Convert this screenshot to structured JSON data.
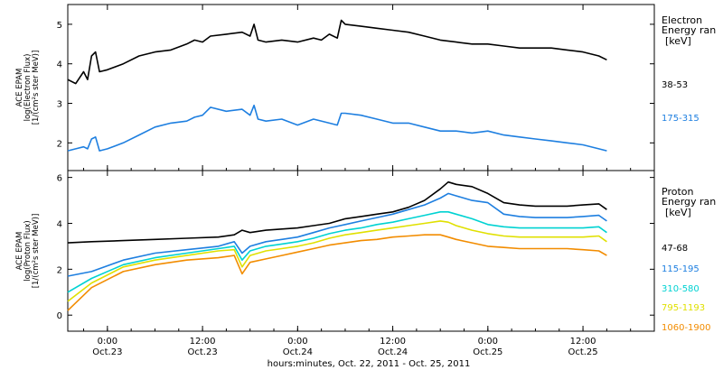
{
  "figure": {
    "xaxis_title": "hours:minutes, Oct. 22, 2011 - Oct. 25, 2011",
    "x_ticks": [
      {
        "x": 24,
        "time": "0:00",
        "day": "Oct.23"
      },
      {
        "x": 36,
        "time": "12:00",
        "day": "Oct.23"
      },
      {
        "x": 48,
        "time": "0:00",
        "day": "Oct.24"
      },
      {
        "x": 60,
        "time": "12:00",
        "day": "Oct.24"
      },
      {
        "x": 72,
        "time": "0:00",
        "day": "Oct.25"
      },
      {
        "x": 84,
        "time": "12:00",
        "day": "Oct.25"
      }
    ]
  },
  "chart_data": [
    {
      "type": "line",
      "panel": "electron",
      "ylabel_lines": [
        "ACE EPAM",
        "log(Electron Flux)",
        "[1/(cm²s ster MeV)]"
      ],
      "xlim": [
        19,
        93
      ],
      "ylim": [
        1.3,
        5.5
      ],
      "yticks": [
        2,
        3,
        4,
        5
      ],
      "legend_title": [
        "Electron",
        "Energy ran"
      ],
      "legend_unit": "[keV]",
      "series": [
        {
          "name": "38-53",
          "color": "#000000",
          "x": [
            19,
            20,
            21,
            21.5,
            22,
            22.5,
            23,
            24,
            26,
            28,
            30,
            32,
            34,
            35,
            36,
            37,
            39,
            41,
            42,
            42.5,
            43,
            44,
            46,
            48,
            50,
            51,
            52,
            53,
            53.5,
            54,
            56,
            58,
            60,
            62,
            64,
            66,
            68,
            70,
            72,
            74,
            76,
            78,
            80,
            82,
            84,
            86,
            87
          ],
          "values": [
            3.6,
            3.5,
            3.8,
            3.6,
            4.2,
            4.3,
            3.8,
            3.85,
            4.0,
            4.2,
            4.3,
            4.35,
            4.5,
            4.6,
            4.55,
            4.7,
            4.75,
            4.8,
            4.7,
            5.0,
            4.6,
            4.55,
            4.6,
            4.55,
            4.65,
            4.6,
            4.75,
            4.65,
            5.1,
            5.0,
            4.95,
            4.9,
            4.85,
            4.8,
            4.7,
            4.6,
            4.55,
            4.5,
            4.5,
            4.45,
            4.4,
            4.4,
            4.4,
            4.35,
            4.3,
            4.2,
            4.1
          ]
        },
        {
          "name": "175-315",
          "color": "#1e7fe0",
          "x": [
            19,
            20,
            21,
            21.5,
            22,
            22.5,
            23,
            24,
            26,
            28,
            30,
            32,
            34,
            35,
            36,
            37,
            39,
            41,
            42,
            42.5,
            43,
            44,
            46,
            48,
            50,
            52,
            53,
            53.5,
            54,
            56,
            58,
            60,
            62,
            64,
            66,
            68,
            70,
            72,
            74,
            76,
            78,
            80,
            82,
            84,
            86,
            87
          ],
          "values": [
            1.8,
            1.85,
            1.9,
            1.85,
            2.1,
            2.15,
            1.8,
            1.85,
            2.0,
            2.2,
            2.4,
            2.5,
            2.55,
            2.65,
            2.7,
            2.9,
            2.8,
            2.85,
            2.7,
            2.95,
            2.6,
            2.55,
            2.6,
            2.45,
            2.6,
            2.5,
            2.45,
            2.75,
            2.75,
            2.7,
            2.6,
            2.5,
            2.5,
            2.4,
            2.3,
            2.3,
            2.25,
            2.3,
            2.2,
            2.15,
            2.1,
            2.05,
            2.0,
            1.95,
            1.85,
            1.8
          ]
        }
      ]
    },
    {
      "type": "line",
      "panel": "proton",
      "ylabel_lines": [
        "ACE EPAM",
        "log(Proton Flux)",
        "[1/(cm²s ster MeV)]"
      ],
      "xlim": [
        19,
        93
      ],
      "ylim": [
        -0.7,
        6.3
      ],
      "yticks": [
        0,
        2,
        4,
        6
      ],
      "legend_title": [
        "Proton",
        "Energy ran"
      ],
      "legend_unit": "[keV]",
      "series": [
        {
          "name": "47-68",
          "color": "#000000",
          "x": [
            19,
            22,
            26,
            30,
            34,
            38,
            40,
            41,
            42,
            44,
            46,
            48,
            50,
            52,
            54,
            56,
            58,
            60,
            62,
            64,
            66,
            67,
            68,
            70,
            72,
            74,
            76,
            78,
            80,
            82,
            84,
            86,
            87
          ],
          "values": [
            3.15,
            3.2,
            3.25,
            3.3,
            3.35,
            3.4,
            3.5,
            3.7,
            3.6,
            3.7,
            3.75,
            3.8,
            3.9,
            4.0,
            4.2,
            4.3,
            4.4,
            4.5,
            4.7,
            5.0,
            5.5,
            5.8,
            5.7,
            5.6,
            5.3,
            4.9,
            4.8,
            4.75,
            4.75,
            4.75,
            4.8,
            4.85,
            4.6
          ]
        },
        {
          "name": "115-195",
          "color": "#1e7fe0",
          "x": [
            19,
            22,
            26,
            30,
            34,
            38,
            40,
            41,
            42,
            44,
            46,
            48,
            50,
            52,
            54,
            56,
            58,
            60,
            62,
            64,
            66,
            67,
            68,
            70,
            72,
            74,
            76,
            78,
            80,
            82,
            84,
            86,
            87
          ],
          "values": [
            1.7,
            1.9,
            2.4,
            2.7,
            2.85,
            3.0,
            3.2,
            2.7,
            3.0,
            3.2,
            3.3,
            3.4,
            3.6,
            3.8,
            3.95,
            4.1,
            4.25,
            4.4,
            4.6,
            4.8,
            5.1,
            5.3,
            5.2,
            5.0,
            4.9,
            4.4,
            4.3,
            4.25,
            4.25,
            4.25,
            4.3,
            4.35,
            4.1
          ]
        },
        {
          "name": "310-580",
          "color": "#00d2d2",
          "x": [
            19,
            22,
            26,
            30,
            34,
            38,
            40,
            41,
            42,
            44,
            46,
            48,
            50,
            52,
            54,
            56,
            58,
            60,
            62,
            64,
            66,
            67,
            68,
            70,
            72,
            74,
            76,
            78,
            80,
            82,
            84,
            86,
            87
          ],
          "values": [
            1.0,
            1.6,
            2.2,
            2.5,
            2.7,
            2.9,
            3.0,
            2.4,
            2.8,
            3.0,
            3.1,
            3.2,
            3.35,
            3.55,
            3.7,
            3.8,
            3.95,
            4.05,
            4.2,
            4.35,
            4.5,
            4.5,
            4.4,
            4.2,
            3.95,
            3.85,
            3.8,
            3.8,
            3.8,
            3.8,
            3.8,
            3.85,
            3.6
          ]
        },
        {
          "name": "795-1193",
          "color": "#e0e000",
          "x": [
            19,
            22,
            26,
            30,
            34,
            38,
            40,
            41,
            42,
            44,
            46,
            48,
            50,
            52,
            54,
            56,
            58,
            60,
            62,
            64,
            66,
            67,
            68,
            70,
            72,
            74,
            76,
            78,
            80,
            82,
            84,
            86,
            87
          ],
          "values": [
            0.6,
            1.4,
            2.1,
            2.4,
            2.6,
            2.8,
            2.85,
            2.1,
            2.6,
            2.8,
            2.9,
            3.0,
            3.15,
            3.35,
            3.5,
            3.6,
            3.7,
            3.8,
            3.9,
            4.0,
            4.1,
            4.05,
            3.9,
            3.7,
            3.55,
            3.45,
            3.4,
            3.4,
            3.4,
            3.4,
            3.4,
            3.45,
            3.2
          ]
        },
        {
          "name": "1060-1900",
          "color": "#f28c00",
          "x": [
            19,
            22,
            26,
            30,
            34,
            38,
            40,
            41,
            42,
            44,
            46,
            48,
            50,
            52,
            54,
            56,
            58,
            60,
            62,
            64,
            66,
            67,
            68,
            70,
            72,
            74,
            76,
            78,
            80,
            82,
            84,
            86,
            87
          ],
          "values": [
            0.2,
            1.2,
            1.9,
            2.2,
            2.4,
            2.5,
            2.6,
            1.8,
            2.3,
            2.45,
            2.6,
            2.75,
            2.9,
            3.05,
            3.15,
            3.25,
            3.3,
            3.4,
            3.45,
            3.5,
            3.5,
            3.4,
            3.3,
            3.15,
            3.0,
            2.95,
            2.9,
            2.9,
            2.9,
            2.9,
            2.85,
            2.8,
            2.6
          ]
        }
      ]
    }
  ]
}
